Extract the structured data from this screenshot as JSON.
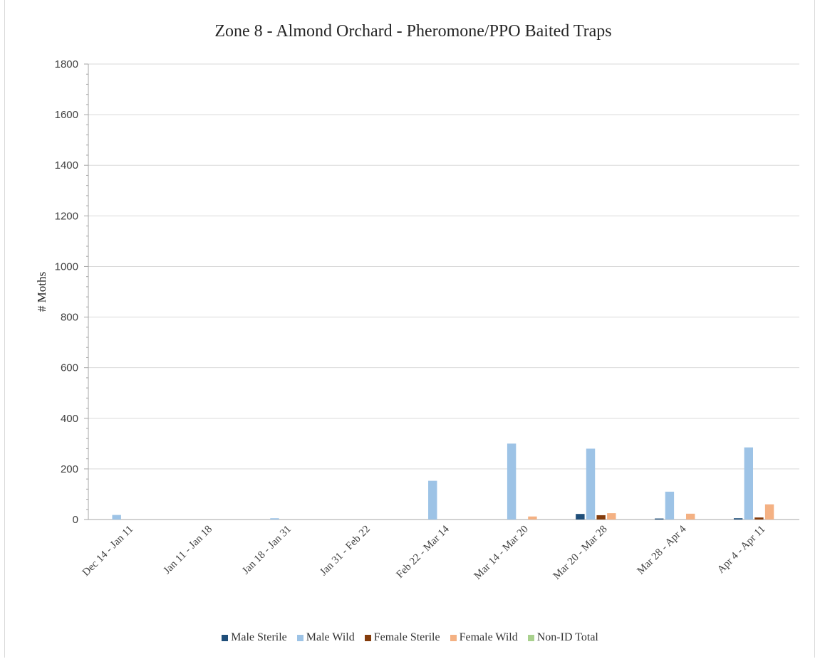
{
  "chart_data": {
    "type": "bar",
    "title": "Zone 8 - Almond Orchard - Pheromone/PPO Baited Traps",
    "xlabel": "",
    "ylabel": "# Moths",
    "ylim": [
      0,
      1800
    ],
    "yticks": [
      0,
      200,
      400,
      600,
      800,
      1000,
      1200,
      1400,
      1600,
      1800
    ],
    "grid": true,
    "legend_position": "bottom",
    "categories": [
      "Dec 14 - Jan 11",
      "Jan 11 - Jan 18",
      "Jan 18 - Jan 31",
      "Jan 31 - Feb 22",
      "Feb 22 - Mar 14",
      "Mar 14 - Mar 20",
      "Mar 20 - Mar 28",
      "Mar 28 - Apr 4",
      "Apr 4 - Apr 11"
    ],
    "series": [
      {
        "name": "Male Sterile",
        "color": "#1f4e79",
        "values": [
          0,
          0,
          0,
          0,
          0,
          0,
          22,
          4,
          5
        ]
      },
      {
        "name": "Male Wild",
        "color": "#9dc3e6",
        "values": [
          18,
          0,
          5,
          0,
          153,
          300,
          280,
          110,
          285
        ]
      },
      {
        "name": "Female Sterile",
        "color": "#843c0c",
        "values": [
          0,
          0,
          0,
          0,
          0,
          0,
          17,
          0,
          8
        ]
      },
      {
        "name": "Female Wild",
        "color": "#f4b183",
        "values": [
          0,
          0,
          0,
          0,
          0,
          12,
          25,
          23,
          60
        ]
      },
      {
        "name": "Non-ID Total",
        "color": "#a9d18e",
        "values": [
          0,
          0,
          0,
          0,
          0,
          0,
          0,
          0,
          0
        ]
      }
    ]
  }
}
